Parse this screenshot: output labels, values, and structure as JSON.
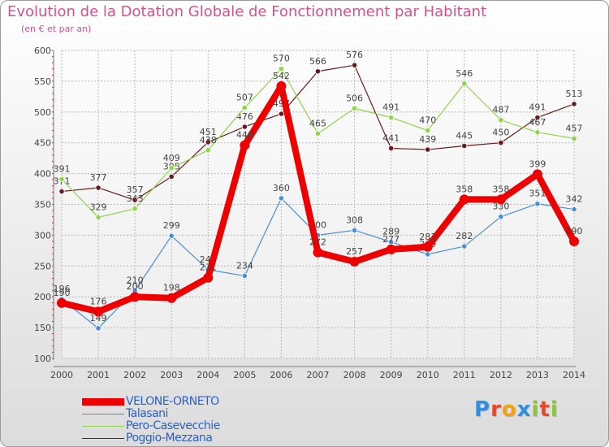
{
  "title": "Evolution de la Dotation Globale de Fonctionnement par Habitant",
  "subtitle": "(en € et par an)",
  "logo_text": "Proxiti",
  "chart_data": {
    "type": "line",
    "title": "Evolution de la Dotation Globale de Fonctionnement par Habitant",
    "subtitle": "(en € et par an)",
    "xlabel": "",
    "ylabel": "",
    "ylim": [
      100,
      600
    ],
    "yticks": [
      100,
      150,
      200,
      250,
      300,
      350,
      400,
      450,
      500,
      550,
      600
    ],
    "categories": [
      "2000",
      "2001",
      "2002",
      "2003",
      "2004",
      "2005",
      "2006",
      "2007",
      "2008",
      "2009",
      "2010",
      "2011",
      "2012",
      "2013",
      "2014"
    ],
    "grid": true,
    "legend_position": "bottom-left",
    "series": [
      {
        "name": "Poggio-Mezzana",
        "color": "#6b1a1a",
        "values": [
          371,
          377,
          357,
          395,
          451,
          476,
          497,
          566,
          576,
          441,
          439,
          445,
          450,
          491,
          513
        ],
        "labels": [
          "371",
          "377",
          "357",
          "395",
          "451",
          "476",
          "497",
          "566",
          "576",
          "441",
          "439",
          "445",
          "450",
          "491",
          "513"
        ]
      },
      {
        "name": "Pero-Casevecchie",
        "color": "#8fd44a",
        "values": [
          391,
          329,
          343,
          409,
          438,
          507,
          570,
          465,
          506,
          491,
          470,
          546,
          487,
          467,
          457
        ],
        "labels": [
          "391",
          "329",
          "343",
          "409",
          "438",
          "507",
          "570",
          "465",
          "506",
          "491",
          "470",
          "546",
          "487",
          "467",
          "457"
        ]
      },
      {
        "name": "Talasani",
        "color": "#4a8fd4",
        "values": [
          196,
          149,
          210,
          299,
          244,
          234,
          360,
          300,
          308,
          289,
          269,
          282,
          330,
          351,
          342
        ],
        "labels": [
          "196",
          "149",
          "210",
          "299",
          "244",
          "234",
          "360",
          "300",
          "308",
          "289",
          "269",
          "282",
          "330",
          "351",
          "342"
        ]
      },
      {
        "name": "VELONE-ORNETO",
        "color": "#ee0000",
        "values": [
          190,
          176,
          200,
          198,
          231,
          446,
          542,
          272,
          257,
          277,
          281,
          358,
          358,
          399,
          290
        ],
        "labels": [
          "190",
          "176",
          "200",
          "198",
          "231",
          "446",
          "542",
          "272",
          "257",
          "277",
          "281",
          "358",
          "358",
          "399",
          "290"
        ]
      }
    ]
  },
  "legend": [
    {
      "name": "VELONE-ORNETO",
      "color": "#ee0000"
    },
    {
      "name": "Talasani",
      "color": "#4a8fd4"
    },
    {
      "name": "Pero-Casevecchie",
      "color": "#8fd44a"
    },
    {
      "name": "Poggio-Mezzana",
      "color": "#6b1a1a"
    }
  ]
}
